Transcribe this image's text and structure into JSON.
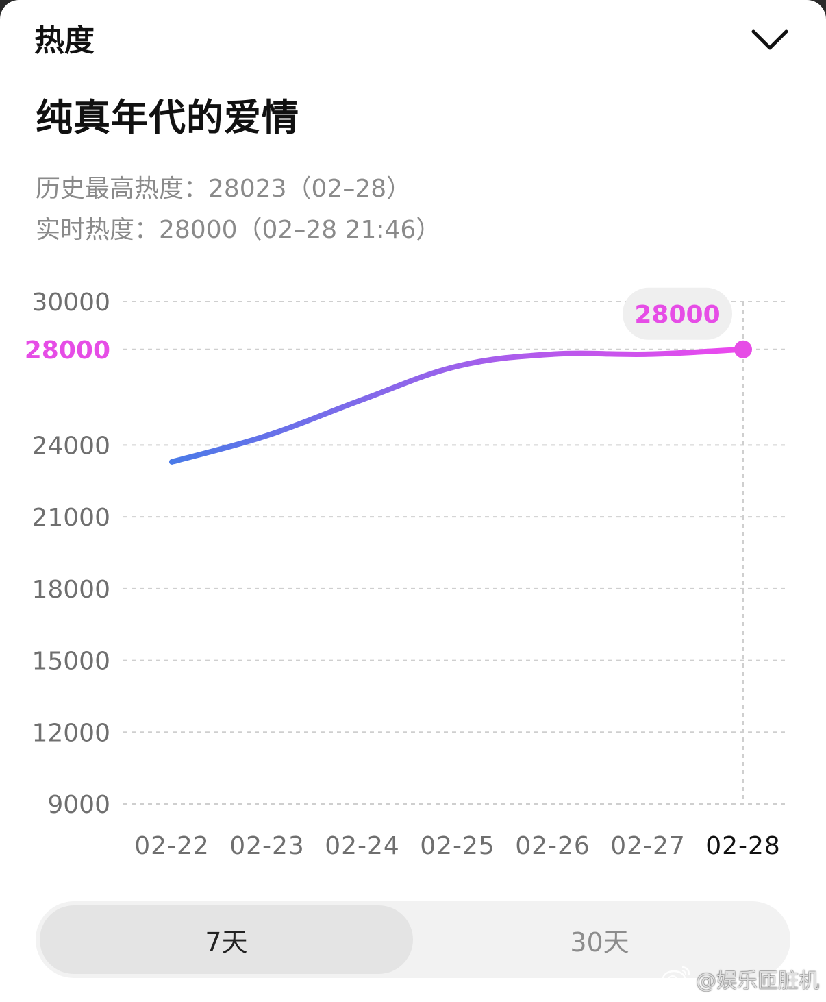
{
  "header": {
    "title": "热度"
  },
  "topic": {
    "title": "纯真年代的爱情"
  },
  "stats": {
    "historical_peak": "历史最高热度：28023（02–28）",
    "realtime": "实时热度：28000（02–28 21:46）"
  },
  "chart_data": {
    "type": "line",
    "x": [
      "02-22",
      "02-23",
      "02-24",
      "02-25",
      "02-26",
      "02-27",
      "02-28"
    ],
    "series": [
      {
        "values": [
          23300,
          24400,
          25900,
          27300,
          27800,
          27800,
          28000
        ]
      }
    ],
    "y_ticks": [
      9000,
      12000,
      15000,
      18000,
      21000,
      24000,
      28000,
      30000
    ],
    "ylim": [
      9000,
      30000
    ],
    "highlight": {
      "x": "02-28",
      "value": 28000,
      "label": "28000"
    },
    "grid": true,
    "colors": {
      "line_start": "#4a7ae8",
      "line_end": "#ee48ee",
      "highlight": "#e64de6"
    }
  },
  "range_toggle": {
    "options": [
      "7天",
      "30天"
    ],
    "selected": "7天"
  },
  "watermark": {
    "text": "@娱乐匝脏机"
  }
}
